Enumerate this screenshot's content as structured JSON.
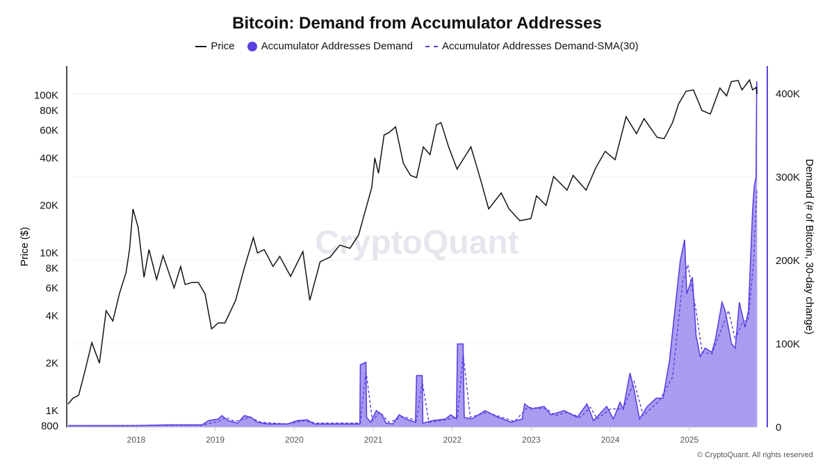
{
  "chart_data": {
    "type": "line",
    "title": "Bitcoin: Demand from Accumulator Addresses",
    "ylabel_left": "Price ($)",
    "ylabel_right": "Demand (# of Bitcoin, 30-day change)",
    "left_axis": {
      "scale": "log",
      "range": [
        800,
        150000
      ],
      "ticks": [
        800,
        1000,
        2000,
        4000,
        6000,
        8000,
        10000,
        20000,
        40000,
        60000,
        80000,
        100000
      ],
      "tick_labels": [
        "800",
        "1K",
        "2K",
        "4K",
        "6K",
        "8K",
        "10K",
        "20K",
        "40K",
        "60K",
        "80K",
        "100K"
      ]
    },
    "right_axis": {
      "scale": "linear",
      "range": [
        0,
        435000
      ],
      "ticks": [
        0,
        100000,
        200000,
        300000,
        400000
      ],
      "tick_labels": [
        "0",
        "100K",
        "200K",
        "300K",
        "400K"
      ]
    },
    "x_ticks": [
      "2018",
      "2019",
      "2020",
      "2021",
      "2022",
      "2023",
      "2024",
      "2025"
    ],
    "grid": true,
    "legend_position": "top-center",
    "watermark": "CryptoQuant",
    "colors": {
      "price": "#111111",
      "demand": "#5b3fe0",
      "demand_fill": "#a99cf0"
    },
    "series": [
      {
        "name": "Price",
        "axis": "left",
        "style": "solid",
        "points": [
          [
            "2017-02-20",
            1100
          ],
          [
            "2017-03-15",
            1200
          ],
          [
            "2017-04-10",
            1250
          ],
          [
            "2017-05-10",
            1800
          ],
          [
            "2017-06-10",
            2700
          ],
          [
            "2017-07-15",
            2000
          ],
          [
            "2017-08-15",
            4300
          ],
          [
            "2017-09-15",
            3700
          ],
          [
            "2017-10-15",
            5500
          ],
          [
            "2017-11-15",
            7500
          ],
          [
            "2017-12-01",
            10500
          ],
          [
            "2017-12-17",
            19000
          ],
          [
            "2018-01-10",
            14500
          ],
          [
            "2018-02-06",
            7000
          ],
          [
            "2018-03-01",
            10500
          ],
          [
            "2018-04-05",
            6800
          ],
          [
            "2018-05-05",
            9600
          ],
          [
            "2018-06-25",
            6000
          ],
          [
            "2018-07-25",
            8200
          ],
          [
            "2018-08-15",
            6300
          ],
          [
            "2018-09-15",
            6500
          ],
          [
            "2018-10-15",
            6500
          ],
          [
            "2018-11-15",
            5500
          ],
          [
            "2018-12-15",
            3300
          ],
          [
            "2019-01-15",
            3600
          ],
          [
            "2019-02-15",
            3600
          ],
          [
            "2019-04-05",
            5000
          ],
          [
            "2019-05-15",
            8000
          ],
          [
            "2019-06-26",
            12500
          ],
          [
            "2019-07-15",
            10000
          ],
          [
            "2019-08-15",
            10500
          ],
          [
            "2019-09-25",
            8200
          ],
          [
            "2019-10-26",
            9500
          ],
          [
            "2019-12-15",
            7100
          ],
          [
            "2020-02-10",
            10200
          ],
          [
            "2020-03-13",
            5000
          ],
          [
            "2020-04-30",
            8800
          ],
          [
            "2020-06-15",
            9400
          ],
          [
            "2020-07-30",
            11200
          ],
          [
            "2020-09-15",
            10700
          ],
          [
            "2020-10-25",
            13000
          ],
          [
            "2020-11-25",
            18500
          ],
          [
            "2020-12-25",
            26000
          ],
          [
            "2021-01-08",
            40000
          ],
          [
            "2021-01-25",
            32000
          ],
          [
            "2021-02-20",
            56000
          ],
          [
            "2021-03-15",
            58000
          ],
          [
            "2021-04-14",
            63000
          ],
          [
            "2021-05-20",
            37000
          ],
          [
            "2021-06-22",
            31000
          ],
          [
            "2021-07-20",
            30000
          ],
          [
            "2021-08-20",
            47000
          ],
          [
            "2021-09-20",
            42000
          ],
          [
            "2021-10-20",
            65000
          ],
          [
            "2021-11-10",
            67000
          ],
          [
            "2021-12-15",
            47000
          ],
          [
            "2022-01-23",
            34000
          ],
          [
            "2022-03-28",
            47000
          ],
          [
            "2022-05-12",
            29000
          ],
          [
            "2022-06-18",
            19000
          ],
          [
            "2022-08-15",
            24000
          ],
          [
            "2022-09-20",
            19000
          ],
          [
            "2022-11-09",
            16000
          ],
          [
            "2022-12-30",
            16500
          ],
          [
            "2023-01-25",
            23000
          ],
          [
            "2023-03-10",
            20000
          ],
          [
            "2023-04-14",
            30500
          ],
          [
            "2023-06-15",
            25000
          ],
          [
            "2023-07-13",
            31000
          ],
          [
            "2023-09-11",
            25000
          ],
          [
            "2023-10-25",
            34500
          ],
          [
            "2023-12-08",
            44000
          ],
          [
            "2024-01-23",
            39000
          ],
          [
            "2024-03-14",
            73000
          ],
          [
            "2024-05-01",
            57000
          ],
          [
            "2024-06-05",
            71000
          ],
          [
            "2024-08-05",
            54000
          ],
          [
            "2024-09-06",
            53000
          ],
          [
            "2024-10-15",
            67000
          ],
          [
            "2024-11-12",
            88000
          ],
          [
            "2024-12-17",
            106000
          ],
          [
            "2025-01-20",
            108000
          ],
          [
            "2025-02-28",
            80000
          ],
          [
            "2025-04-08",
            76000
          ],
          [
            "2025-05-22",
            111000
          ],
          [
            "2025-06-22",
            99000
          ],
          [
            "2025-07-14",
            122000
          ],
          [
            "2025-08-14",
            124000
          ],
          [
            "2025-09-01",
            108000
          ],
          [
            "2025-10-06",
            125000
          ],
          [
            "2025-10-20",
            108000
          ],
          [
            "2025-11-05",
            112000
          ],
          [
            "2025-11-09",
            102000
          ]
        ]
      },
      {
        "name": "Accumulator Addresses Demand",
        "axis": "right",
        "style": "area",
        "points": [
          [
            "2017-02-20",
            2000
          ],
          [
            "2018-01-01",
            2000
          ],
          [
            "2018-06-01",
            3000
          ],
          [
            "2018-11-01",
            3000
          ],
          [
            "2018-12-01",
            8000
          ],
          [
            "2019-01-15",
            10000
          ],
          [
            "2019-02-01",
            14000
          ],
          [
            "2019-03-01",
            8000
          ],
          [
            "2019-04-15",
            5000
          ],
          [
            "2019-05-15",
            14000
          ],
          [
            "2019-06-15",
            12000
          ],
          [
            "2019-07-15",
            6000
          ],
          [
            "2019-09-01",
            4000
          ],
          [
            "2019-12-01",
            4000
          ],
          [
            "2020-01-15",
            8000
          ],
          [
            "2020-03-01",
            9000
          ],
          [
            "2020-04-01",
            4000
          ],
          [
            "2020-10-31",
            4000
          ],
          [
            "2020-11-02",
            75000
          ],
          [
            "2020-11-28",
            78000
          ],
          [
            "2020-12-01",
            12000
          ],
          [
            "2020-12-20",
            6000
          ],
          [
            "2021-01-15",
            20000
          ],
          [
            "2021-02-10",
            15000
          ],
          [
            "2021-03-01",
            5000
          ],
          [
            "2021-04-01",
            4000
          ],
          [
            "2021-05-01",
            15000
          ],
          [
            "2021-06-01",
            10000
          ],
          [
            "2021-07-15",
            6000
          ],
          [
            "2021-07-20",
            62000
          ],
          [
            "2021-08-15",
            62000
          ],
          [
            "2021-08-18",
            5000
          ],
          [
            "2021-10-01",
            8000
          ],
          [
            "2021-12-01",
            10000
          ],
          [
            "2021-12-25",
            15000
          ],
          [
            "2022-01-20",
            10000
          ],
          [
            "2022-01-25",
            100000
          ],
          [
            "2022-02-20",
            100000
          ],
          [
            "2022-02-25",
            12000
          ],
          [
            "2022-04-01",
            10000
          ],
          [
            "2022-06-01",
            20000
          ],
          [
            "2022-08-01",
            12000
          ],
          [
            "2022-10-01",
            6000
          ],
          [
            "2022-11-20",
            10000
          ],
          [
            "2022-12-01",
            28000
          ],
          [
            "2023-01-01",
            22000
          ],
          [
            "2023-03-01",
            25000
          ],
          [
            "2023-04-01",
            15000
          ],
          [
            "2023-06-01",
            20000
          ],
          [
            "2023-08-01",
            12000
          ],
          [
            "2023-09-15",
            28000
          ],
          [
            "2023-10-15",
            8000
          ],
          [
            "2023-12-15",
            25000
          ],
          [
            "2024-01-15",
            10000
          ],
          [
            "2024-02-15",
            30000
          ],
          [
            "2024-03-01",
            22000
          ],
          [
            "2024-04-01",
            65000
          ],
          [
            "2024-04-20",
            45000
          ],
          [
            "2024-05-15",
            10000
          ],
          [
            "2024-06-20",
            25000
          ],
          [
            "2024-08-01",
            35000
          ],
          [
            "2024-09-01",
            35000
          ],
          [
            "2024-10-01",
            80000
          ],
          [
            "2024-11-01",
            155000
          ],
          [
            "2024-11-20",
            200000
          ],
          [
            "2024-12-10",
            225000
          ],
          [
            "2024-12-20",
            160000
          ],
          [
            "2025-01-15",
            180000
          ],
          [
            "2025-02-01",
            110000
          ],
          [
            "2025-02-20",
            85000
          ],
          [
            "2025-03-15",
            95000
          ],
          [
            "2025-04-15",
            90000
          ],
          [
            "2025-05-01",
            105000
          ],
          [
            "2025-06-01",
            150000
          ],
          [
            "2025-06-15",
            140000
          ],
          [
            "2025-07-15",
            100000
          ],
          [
            "2025-08-01",
            95000
          ],
          [
            "2025-08-20",
            150000
          ],
          [
            "2025-09-15",
            120000
          ],
          [
            "2025-10-01",
            140000
          ],
          [
            "2025-10-20",
            260000
          ],
          [
            "2025-10-28",
            290000
          ],
          [
            "2025-11-05",
            300000
          ],
          [
            "2025-11-08",
            415000
          ],
          [
            "2025-11-10",
            400000
          ]
        ]
      },
      {
        "name": "Accumulator Addresses Demand-SMA(30)",
        "axis": "right",
        "style": "dashed",
        "points": [
          [
            "2017-02-20",
            2000
          ],
          [
            "2018-11-01",
            2500
          ],
          [
            "2019-01-15",
            7000
          ],
          [
            "2019-02-20",
            12000
          ],
          [
            "2019-04-01",
            7000
          ],
          [
            "2019-06-10",
            12000
          ],
          [
            "2019-08-01",
            6000
          ],
          [
            "2019-12-01",
            4000
          ],
          [
            "2020-02-15",
            8000
          ],
          [
            "2020-04-15",
            5000
          ],
          [
            "2020-11-02",
            5000
          ],
          [
            "2020-11-28",
            68000
          ],
          [
            "2020-12-28",
            8000
          ],
          [
            "2021-02-01",
            18000
          ],
          [
            "2021-03-15",
            6000
          ],
          [
            "2021-05-20",
            13000
          ],
          [
            "2021-07-20",
            8000
          ],
          [
            "2021-08-15",
            55000
          ],
          [
            "2021-09-15",
            6000
          ],
          [
            "2021-12-01",
            9000
          ],
          [
            "2022-01-25",
            12000
          ],
          [
            "2022-02-20",
            88000
          ],
          [
            "2022-03-25",
            12000
          ],
          [
            "2022-06-10",
            18000
          ],
          [
            "2022-10-15",
            7000
          ],
          [
            "2022-12-15",
            24000
          ],
          [
            "2023-03-15",
            22000
          ],
          [
            "2023-04-20",
            14000
          ],
          [
            "2023-06-15",
            18000
          ],
          [
            "2023-08-15",
            12000
          ],
          [
            "2023-10-01",
            24000
          ],
          [
            "2023-11-01",
            10000
          ],
          [
            "2024-01-01",
            22000
          ],
          [
            "2024-03-01",
            22000
          ],
          [
            "2024-04-20",
            55000
          ],
          [
            "2024-06-01",
            14000
          ],
          [
            "2024-08-15",
            32000
          ],
          [
            "2024-10-15",
            60000
          ],
          [
            "2024-12-01",
            175000
          ],
          [
            "2024-12-25",
            195000
          ],
          [
            "2025-02-01",
            140000
          ],
          [
            "2025-03-01",
            90000
          ],
          [
            "2025-04-15",
            88000
          ],
          [
            "2025-06-01",
            120000
          ],
          [
            "2025-07-01",
            140000
          ],
          [
            "2025-08-01",
            105000
          ],
          [
            "2025-09-01",
            125000
          ],
          [
            "2025-10-01",
            130000
          ],
          [
            "2025-10-25",
            200000
          ],
          [
            "2025-11-09",
            285000
          ]
        ]
      }
    ]
  },
  "legend": {
    "price": "Price",
    "demand": "Accumulator Addresses Demand",
    "sma": "Accumulator Addresses Demand-SMA(30)"
  },
  "footer": "© CryptoQuant. All rights reserved"
}
